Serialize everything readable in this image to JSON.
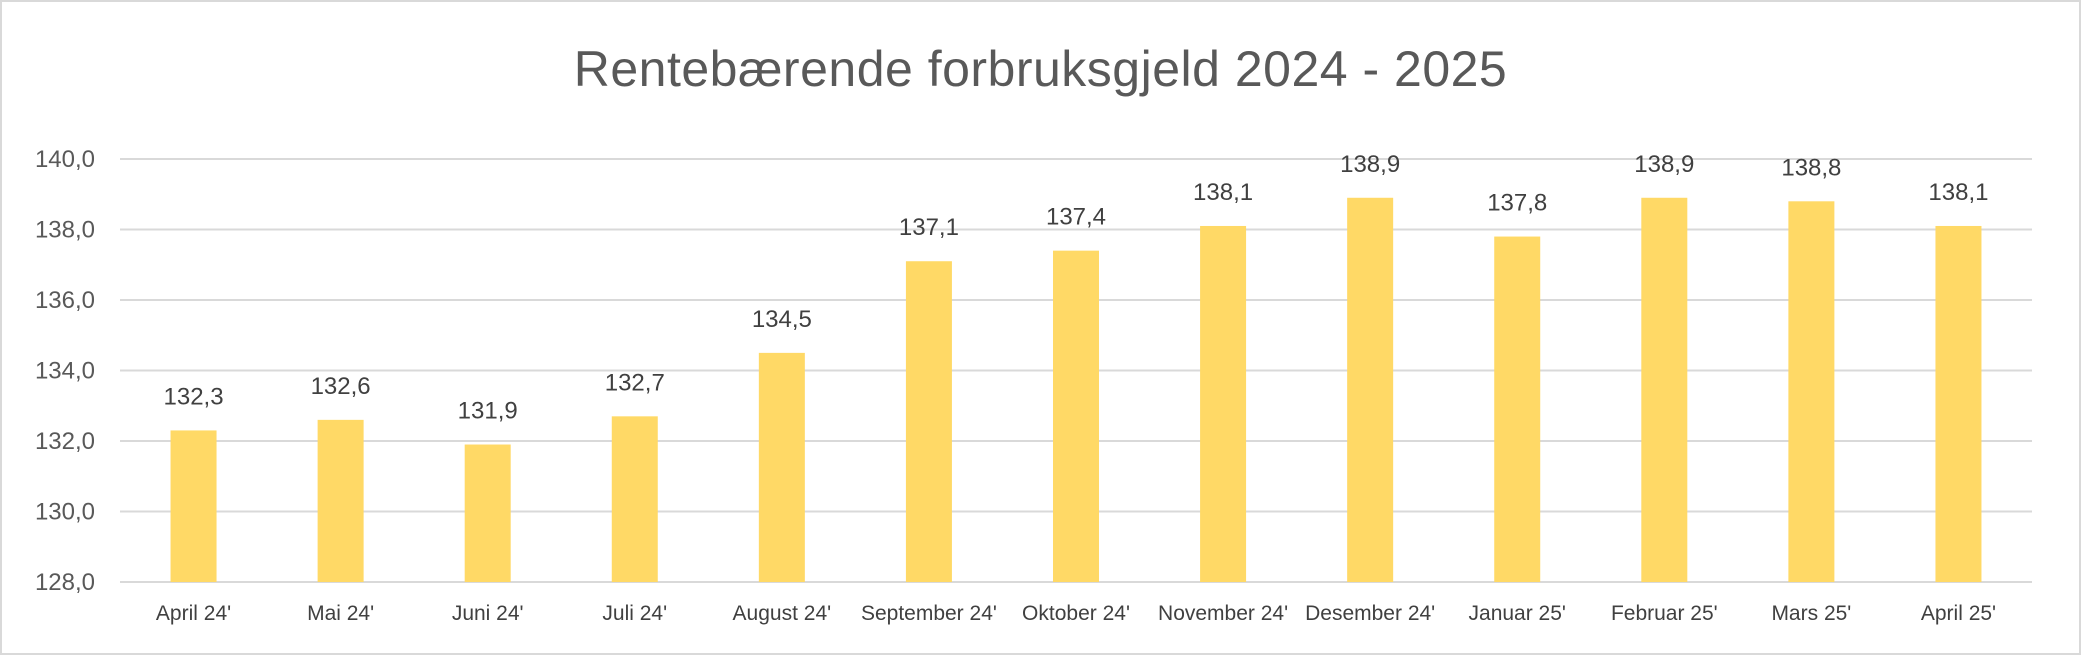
{
  "chart_data": {
    "type": "bar",
    "title": "Rentebærende forbruksgjeld 2024 - 2025",
    "categories": [
      "April 24'",
      "Mai 24'",
      "Juni 24'",
      "Juli 24'",
      "August 24'",
      "September 24'",
      "Oktober 24'",
      "November 24'",
      "Desember 24'",
      "Januar 25'",
      "Februar 25'",
      "Mars 25'",
      "April 25'"
    ],
    "values": [
      132.3,
      132.6,
      131.9,
      132.7,
      134.5,
      137.1,
      137.4,
      138.1,
      138.9,
      137.8,
      138.9,
      138.8,
      138.1
    ],
    "value_labels": [
      "132,3",
      "132,6",
      "131,9",
      "132,7",
      "134,5",
      "137,1",
      "137,4",
      "138,1",
      "138,9",
      "137,8",
      "138,9",
      "138,8",
      "138,1"
    ],
    "xlabel": "",
    "ylabel": "",
    "ylim": [
      128,
      140
    ],
    "yticks": [
      128,
      130,
      132,
      134,
      136,
      138,
      140
    ],
    "ytick_labels": [
      "128,0",
      "130,0",
      "132,0",
      "134,0",
      "136,0",
      "138,0",
      "140,0"
    ],
    "grid": true,
    "legend": "none",
    "bar_color": "#FFD966"
  }
}
